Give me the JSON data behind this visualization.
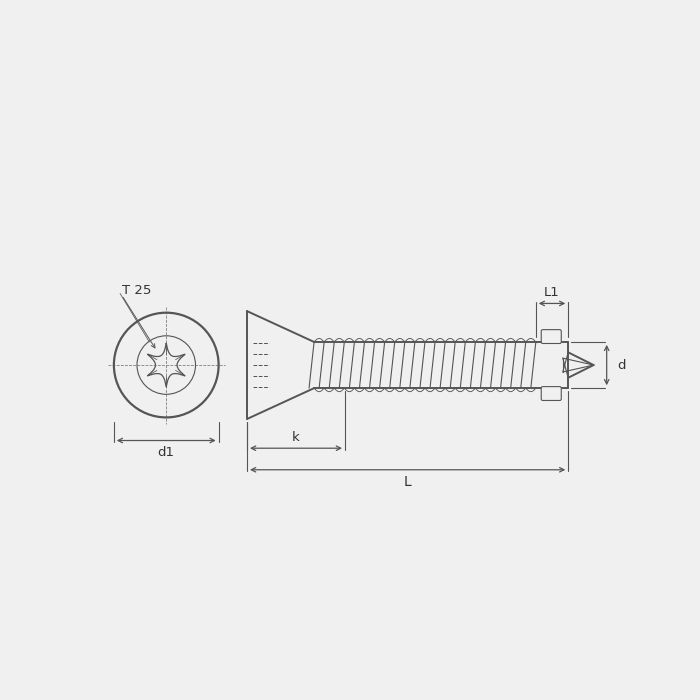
{
  "bg_color": "#f0f0f0",
  "line_color": "#555555",
  "thin_color": "#777777",
  "text_color": "#333333",
  "lw": 1.4,
  "tlw": 0.8,
  "labels": {
    "T25": "T 25",
    "d1": "d1",
    "k": "k",
    "L": "L",
    "L1": "L1",
    "d": "d"
  }
}
